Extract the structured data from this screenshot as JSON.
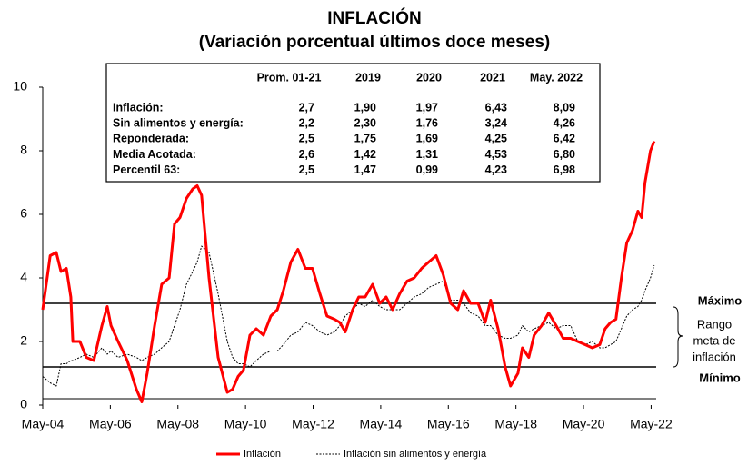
{
  "chart_data": {
    "type": "line",
    "title": "INFLACIÓN",
    "subtitle": "(Variación porcentual últimos doce meses)",
    "x": [
      2004.33,
      2004.55,
      2004.73,
      2004.87,
      2005.03,
      2005.16,
      2005.22,
      2005.43,
      2005.62,
      2005.84,
      2006.08,
      2006.24,
      2006.35,
      2006.56,
      2006.83,
      2007.1,
      2007.26,
      2007.42,
      2007.64,
      2007.85,
      2008.07,
      2008.23,
      2008.39,
      2008.58,
      2008.77,
      2008.9,
      2009.03,
      2009.25,
      2009.52,
      2009.79,
      2009.95,
      2010.11,
      2010.27,
      2010.46,
      2010.65,
      2010.86,
      2011.08,
      2011.27,
      2011.45,
      2011.67,
      2011.88,
      2012.1,
      2012.31,
      2012.53,
      2012.74,
      2012.96,
      2013.12,
      2013.28,
      2013.5,
      2013.68,
      2013.87,
      2014.09,
      2014.3,
      2014.49,
      2014.68,
      2014.89,
      2015.11,
      2015.32,
      2015.54,
      2015.75,
      2015.97,
      2016.18,
      2016.4,
      2016.61,
      2016.78,
      2016.99,
      2017.21,
      2017.42,
      2017.58,
      2017.8,
      2018.01,
      2018.17,
      2018.39,
      2018.52,
      2018.71,
      2018.87,
      2019.09,
      2019.3,
      2019.52,
      2019.73,
      2019.95,
      2020.16,
      2020.38,
      2020.59,
      2020.81,
      2020.97,
      2021.13,
      2021.29,
      2021.45,
      2021.61,
      2021.78,
      2021.94,
      2022.05,
      2022.15,
      2022.31,
      2022.42
    ],
    "series": [
      {
        "name": "Inflación",
        "color": "#ff0000",
        "style": "solid",
        "values": [
          3.0,
          4.7,
          4.8,
          4.2,
          4.3,
          3.4,
          2.0,
          2.0,
          1.5,
          1.4,
          2.5,
          3.1,
          2.5,
          2.0,
          1.4,
          0.5,
          0.1,
          1.0,
          2.5,
          3.8,
          4.0,
          5.7,
          5.9,
          6.5,
          6.8,
          6.9,
          6.6,
          4.0,
          1.5,
          0.4,
          0.5,
          0.9,
          1.1,
          2.2,
          2.4,
          2.2,
          2.8,
          3.0,
          3.6,
          4.5,
          4.9,
          4.3,
          4.3,
          3.5,
          2.8,
          2.7,
          2.6,
          2.3,
          3.0,
          3.4,
          3.4,
          3.8,
          3.2,
          3.4,
          3.0,
          3.5,
          3.9,
          4.0,
          4.3,
          4.5,
          4.7,
          4.1,
          3.2,
          3.0,
          3.6,
          3.2,
          3.2,
          2.6,
          3.3,
          2.4,
          1.2,
          0.6,
          1.0,
          1.8,
          1.5,
          2.2,
          2.5,
          2.9,
          2.5,
          2.1,
          2.1,
          2.0,
          1.9,
          1.8,
          1.9,
          2.4,
          2.6,
          2.7,
          4.0,
          5.1,
          5.5,
          6.1,
          5.9,
          7.0,
          8.0,
          8.3
        ]
      },
      {
        "name": "Inflación sin alimentos y energía",
        "color": "#000000",
        "style": "dotted",
        "values": [
          0.9,
          0.7,
          0.6,
          1.3,
          1.3,
          1.4,
          1.4,
          1.5,
          1.6,
          1.5,
          1.8,
          1.6,
          1.7,
          1.5,
          1.6,
          1.5,
          1.4,
          1.5,
          1.6,
          1.8,
          2.0,
          2.5,
          3.0,
          3.8,
          4.2,
          4.5,
          5.0,
          4.8,
          3.5,
          2.0,
          1.5,
          1.3,
          1.3,
          1.2,
          1.4,
          1.6,
          1.7,
          1.7,
          1.9,
          2.2,
          2.3,
          2.6,
          2.5,
          2.3,
          2.2,
          2.3,
          2.5,
          2.8,
          3.0,
          3.2,
          3.1,
          3.3,
          3.1,
          3.0,
          3.0,
          3.0,
          3.2,
          3.4,
          3.5,
          3.7,
          3.8,
          3.9,
          3.3,
          3.3,
          3.2,
          2.9,
          2.8,
          2.5,
          2.5,
          2.2,
          2.1,
          2.1,
          2.2,
          2.5,
          2.3,
          2.4,
          2.5,
          2.6,
          2.4,
          2.5,
          2.5,
          2.0,
          1.9,
          2.0,
          1.8,
          1.8,
          1.9,
          2.0,
          2.4,
          2.8,
          3.0,
          3.1,
          3.3,
          3.6,
          4.0,
          4.4
        ]
      }
    ],
    "xlim": [
      2004.33,
      2022.48
    ],
    "xticks": [
      {
        "value": 2004.33,
        "label": "May-04"
      },
      {
        "value": 2006.33,
        "label": "May-06"
      },
      {
        "value": 2008.33,
        "label": "May-08"
      },
      {
        "value": 2010.33,
        "label": "May-10"
      },
      {
        "value": 2012.33,
        "label": "May-12"
      },
      {
        "value": 2014.33,
        "label": "May-14"
      },
      {
        "value": 2016.33,
        "label": "May-16"
      },
      {
        "value": 2018.33,
        "label": "May-18"
      },
      {
        "value": 2020.33,
        "label": "May-20"
      },
      {
        "value": 2022.33,
        "label": "May-22"
      }
    ],
    "ylim": [
      0,
      10
    ],
    "yticks": [
      0,
      2,
      4,
      6,
      8,
      10
    ],
    "reference_lines": [
      {
        "label": "Máximo",
        "value": 3.2
      },
      {
        "label": "Mínimo",
        "value": 1.2
      }
    ],
    "range_label": [
      "Rango",
      "meta de",
      "inflación"
    ],
    "legend": "bottom"
  },
  "table": {
    "columns": [
      "Prom. 01-21",
      "2019",
      "2020",
      "2021",
      "May. 2022"
    ],
    "rows": [
      {
        "label": "Inflación:",
        "values": [
          "2,7",
          "1,90",
          "1,97",
          "6,43",
          "8,09"
        ]
      },
      {
        "label": "Sin alimentos y energía:",
        "values": [
          "2,2",
          "2,30",
          "1,76",
          "3,24",
          "4,26"
        ]
      },
      {
        "label": "Reponderada:",
        "values": [
          "2,5",
          "1,75",
          "1,69",
          "4,25",
          "6,42"
        ]
      },
      {
        "label": "Media Acotada:",
        "values": [
          "2,6",
          "1,42",
          "1,31",
          "4,53",
          "6,80"
        ]
      },
      {
        "label": "Percentil 63:",
        "values": [
          "2,5",
          "1,47",
          "0,99",
          "4,23",
          "6,98"
        ]
      }
    ]
  }
}
